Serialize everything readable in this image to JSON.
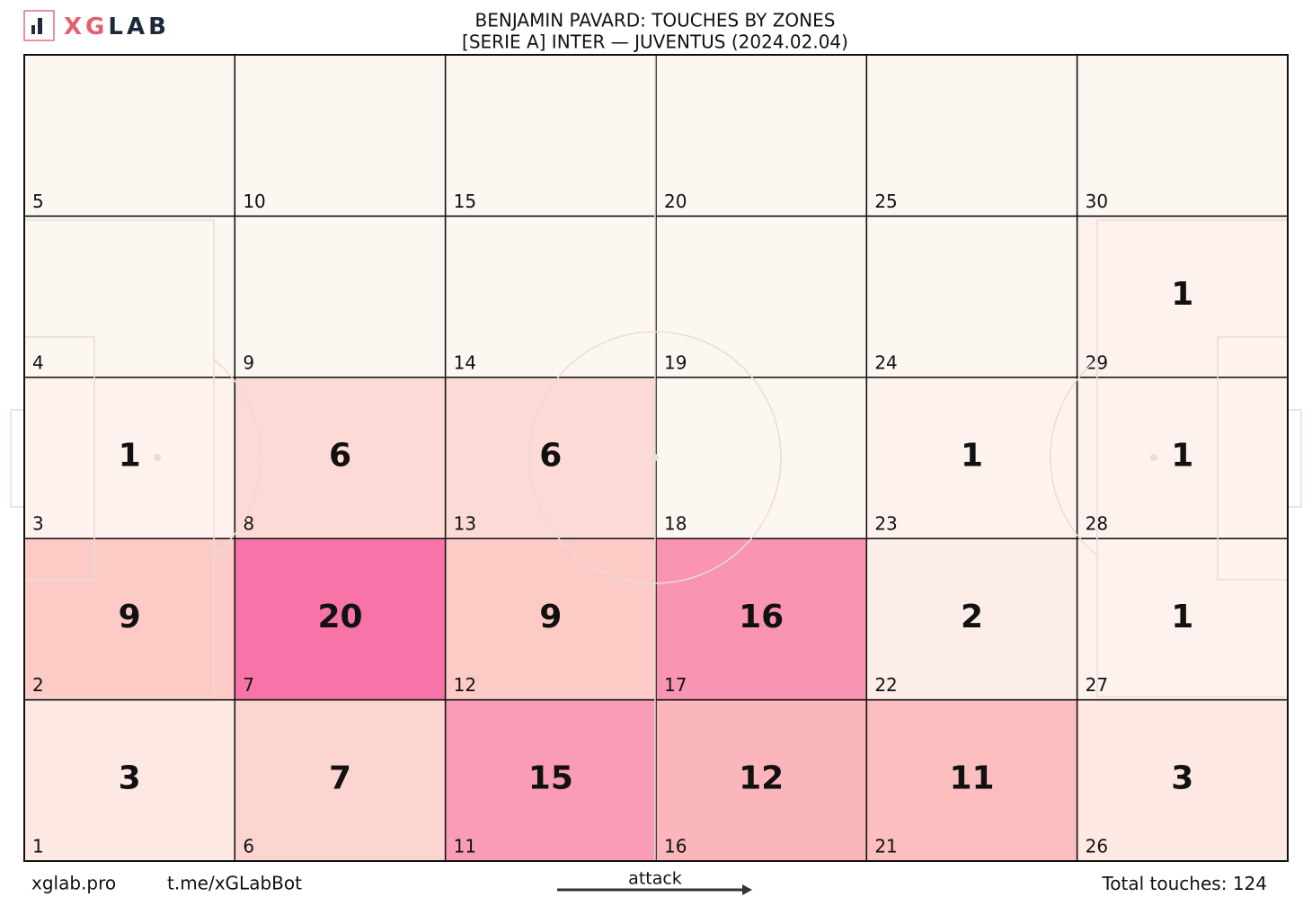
{
  "header": {
    "logo_accent": "XG",
    "logo_rest": "LAB",
    "title": "BENJAMIN PAVARD: TOUCHES BY ZONES",
    "subtitle": "[SERIE A] INTER —  JUVENTUS (2024.02.04)"
  },
  "chart_data": {
    "type": "heatmap",
    "columns": 6,
    "rows": 5,
    "zones": [
      {
        "zone": 1,
        "value": 3
      },
      {
        "zone": 2,
        "value": 9
      },
      {
        "zone": 3,
        "value": 1
      },
      {
        "zone": 4,
        "value": null
      },
      {
        "zone": 5,
        "value": null
      },
      {
        "zone": 6,
        "value": 7
      },
      {
        "zone": 7,
        "value": 20
      },
      {
        "zone": 8,
        "value": 6
      },
      {
        "zone": 9,
        "value": null
      },
      {
        "zone": 10,
        "value": null
      },
      {
        "zone": 11,
        "value": 15
      },
      {
        "zone": 12,
        "value": 9
      },
      {
        "zone": 13,
        "value": 6
      },
      {
        "zone": 14,
        "value": null
      },
      {
        "zone": 15,
        "value": null
      },
      {
        "zone": 16,
        "value": 12
      },
      {
        "zone": 17,
        "value": 16
      },
      {
        "zone": 18,
        "value": null
      },
      {
        "zone": 19,
        "value": null
      },
      {
        "zone": 20,
        "value": null
      },
      {
        "zone": 21,
        "value": 11
      },
      {
        "zone": 22,
        "value": 2
      },
      {
        "zone": 23,
        "value": 1
      },
      {
        "zone": 24,
        "value": null
      },
      {
        "zone": 25,
        "value": null
      },
      {
        "zone": 26,
        "value": 3
      },
      {
        "zone": 27,
        "value": 1
      },
      {
        "zone": 28,
        "value": 1
      },
      {
        "zone": 29,
        "value": 1
      },
      {
        "zone": 30,
        "value": null
      }
    ],
    "colors": [
      "#fdf6f1",
      "#fcc2bd",
      "#f768a1"
    ]
  },
  "footer": {
    "site": "xglab.pro",
    "bot": "t.me/xGLabBot",
    "direction": "attack",
    "total_label": "Total touches:",
    "total": 124
  }
}
